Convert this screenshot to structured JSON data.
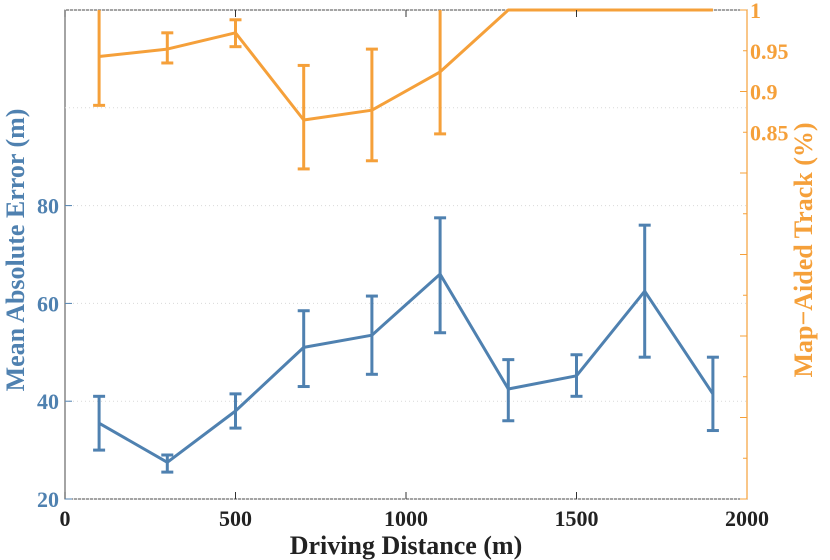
{
  "chart_data": {
    "type": "line",
    "title": "",
    "xlabel": "Driving Distance (m)",
    "ylabel_left": "Mean Absolute Error (m)",
    "ylabel_right": "Map−Aided Track (%)",
    "xlim": [
      0,
      2000
    ],
    "ylim_left": [
      20,
      120
    ],
    "ylim_right": [
      0.4,
      1.0
    ],
    "x_ticks": [
      "0",
      "500",
      "1000",
      "1500",
      "2000"
    ],
    "y_ticks_left": [
      "20",
      "40",
      "60",
      "80"
    ],
    "y_ticks_right": [
      "1",
      "0.95",
      "0.9",
      "0.85"
    ],
    "grid": "horizontal dotted",
    "series": [
      {
        "name": "Mean Absolute Error",
        "axis": "left",
        "color": "#4f81b0",
        "x": [
          100,
          300,
          500,
          700,
          900,
          1100,
          1300,
          1500,
          1700,
          1900
        ],
        "values": [
          35.5,
          27.5,
          38.0,
          51.0,
          53.5,
          66.0,
          42.5,
          45.2,
          62.5,
          41.5
        ],
        "err_low": [
          30.0,
          25.5,
          34.5,
          43.0,
          45.5,
          54.0,
          36.0,
          41.0,
          49.0,
          34.0
        ],
        "err_high": [
          41.0,
          29.0,
          41.5,
          58.5,
          61.5,
          77.5,
          48.5,
          49.5,
          76.0,
          49.0
        ]
      },
      {
        "name": "Map-Aided Track",
        "axis": "right",
        "color": "#f5a03a",
        "x": [
          100,
          300,
          500,
          700,
          900,
          1100,
          1300,
          1500,
          1700,
          1900
        ],
        "values": [
          0.943,
          0.952,
          0.972,
          0.865,
          0.877,
          0.924,
          1.0,
          1.0,
          1.0,
          1.0
        ],
        "err_low": [
          0.883,
          0.935,
          0.955,
          0.805,
          0.815,
          0.848,
          1.0,
          1.0,
          1.0,
          1.0
        ],
        "err_high": [
          1.0,
          0.972,
          0.988,
          0.932,
          0.952,
          1.0,
          1.0,
          1.0,
          1.0,
          1.0
        ]
      }
    ]
  }
}
